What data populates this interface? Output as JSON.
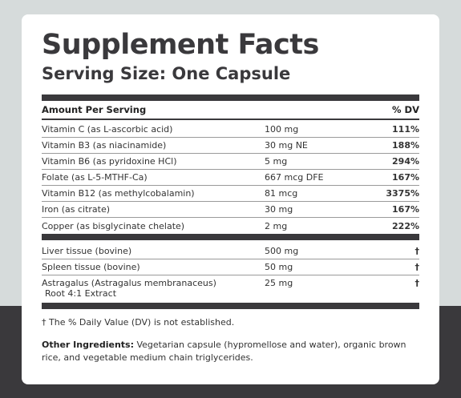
{
  "title": "Supplement Facts",
  "serving_size": "Serving Size: One Capsule",
  "table_header": {
    "label": "Amount Per Serving",
    "dv": "% DV"
  },
  "nutrients": [
    {
      "name": "Vitamin C (as L-ascorbic acid)",
      "amount": "100 mg",
      "dv": "111%"
    },
    {
      "name": "Vitamin B3 (as niacinamide)",
      "amount": "30 mg NE",
      "dv": "188%"
    },
    {
      "name": "Vitamin B6 (as pyridoxine HCl)",
      "amount": "5 mg",
      "dv": "294%"
    },
    {
      "name": "Folate (as L-5-MTHF-Ca)",
      "amount": "667 mcg DFE",
      "dv": "167%"
    },
    {
      "name": "Vitamin B12 (as methylcobalamin)",
      "amount": "81 mcg",
      "dv": "3375%"
    },
    {
      "name": "Iron (as citrate)",
      "amount": "30 mg",
      "dv": "167%"
    },
    {
      "name": "Copper (as bisglycinate chelate)",
      "amount": "2 mg",
      "dv": "222%"
    }
  ],
  "other_items": [
    {
      "name": "Liver tissue (bovine)",
      "amount": "500 mg",
      "dv": "†"
    },
    {
      "name": "Spleen tissue (bovine)",
      "amount": "50 mg",
      "dv": "†"
    },
    {
      "name": "Astragalus (Astragalus membranaceus)",
      "name_line2": "Root 4:1 Extract",
      "amount": "25 mg",
      "dv": "†"
    }
  ],
  "footnote": "† The % Daily Value (DV) is not established.",
  "other_ingredients": {
    "label": "Other Ingredients:",
    "text": "Vegetarian capsule (hypromellose and water), organic brown rice, and vegetable medium chain triglycerides."
  },
  "colors": {
    "accent_dark": "#3a393c",
    "top_bg": "#d6dbdb",
    "card_bg": "#ffffff"
  }
}
